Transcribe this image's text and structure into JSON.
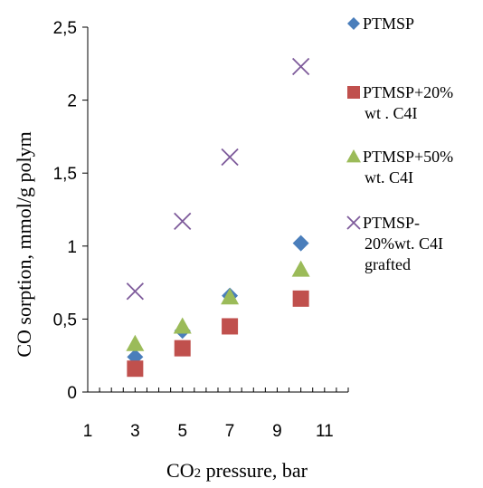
{
  "chart_data": {
    "type": "scatter",
    "xlabel": "CO2 pressure, bar",
    "xlabel_main": "CO",
    "xlabel_sub": "2",
    "xlabel_rest": " pressure, bar",
    "ylabel": "CO  sorption, mmol/g polym",
    "xlim": [
      1,
      12
    ],
    "ylim": [
      0,
      2.5
    ],
    "x_ticks": [
      "1",
      "3",
      "5",
      "7",
      "9",
      "11"
    ],
    "x_tick_values": [
      1,
      3,
      5,
      7,
      9,
      11
    ],
    "y_ticks": [
      "0",
      "0,5",
      "1",
      "1,5",
      "2",
      "2,5"
    ],
    "y_tick_values": [
      0,
      0.5,
      1,
      1.5,
      2,
      2.5
    ],
    "grid": false,
    "legend_position": "right",
    "series": [
      {
        "name": "PTMSP",
        "legend_lines": [
          "PTMSP"
        ],
        "marker": "diamond",
        "color": "#4a7ebb",
        "points": [
          [
            3,
            0.24
          ],
          [
            5,
            0.42
          ],
          [
            7,
            0.66
          ],
          [
            10,
            1.02
          ]
        ]
      },
      {
        "name": "PTMSP+20% wt . C4I",
        "legend_lines": [
          "PTMSP+20%",
          "wt . C4I"
        ],
        "marker": "square",
        "color": "#c0504d",
        "points": [
          [
            3,
            0.16
          ],
          [
            5,
            0.3
          ],
          [
            7,
            0.45
          ],
          [
            10,
            0.64
          ]
        ]
      },
      {
        "name": "PTMSP+50% wt. C4I",
        "legend_lines": [
          "PTMSP+50%",
          "wt. C4I"
        ],
        "marker": "triangle",
        "color": "#9bbb59",
        "points": [
          [
            3,
            0.33
          ],
          [
            5,
            0.45
          ],
          [
            7,
            0.65
          ],
          [
            10,
            0.84
          ]
        ]
      },
      {
        "name": "PTMSP-20%wt. C4I grafted",
        "legend_lines": [
          "PTMSP-",
          "20%wt. C4I",
          "grafted"
        ],
        "marker": "x",
        "color": "#7e5b9b",
        "points": [
          [
            3,
            0.69
          ],
          [
            5,
            1.17
          ],
          [
            7,
            1.61
          ],
          [
            10,
            2.23
          ]
        ]
      }
    ]
  }
}
